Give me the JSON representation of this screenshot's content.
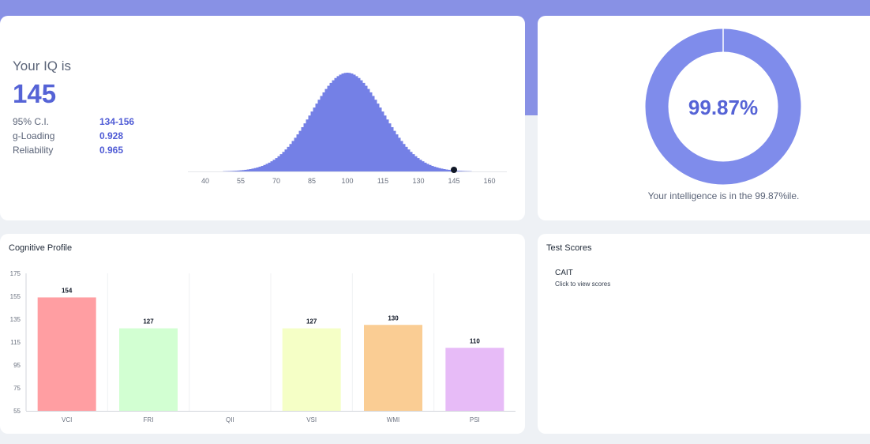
{
  "iq_card": {
    "label": "Your IQ is",
    "value": "145",
    "stats": [
      {
        "key": "95% C.I.",
        "value": "134-156"
      },
      {
        "key": "g-Loading",
        "value": "0.928"
      },
      {
        "key": "Reliability",
        "value": "0.965"
      }
    ],
    "distribution": {
      "mean": 100,
      "sd": 15,
      "marker": 145,
      "x_ticks": [
        "40",
        "55",
        "70",
        "85",
        "100",
        "115",
        "130",
        "145",
        "160"
      ],
      "bar_color": "#7480e6",
      "marker_color": "#111827"
    }
  },
  "percentile_card": {
    "value": "99.87%",
    "fraction": 0.9987,
    "caption": "Your intelligence is in the 99.87%ile.",
    "ring_color": "#7f8ceb",
    "text_color": "#5563d6"
  },
  "cognitive_profile": {
    "title": "Cognitive Profile",
    "chart_data": {
      "type": "bar",
      "categories": [
        "VCI",
        "FRI",
        "QII",
        "VSI",
        "WMI",
        "PSI"
      ],
      "values": [
        154,
        127,
        null,
        127,
        130,
        110
      ],
      "data_labels": [
        "154",
        "127",
        "",
        "127",
        "130",
        "110"
      ],
      "colors": [
        "#ff9ea2",
        "#d2ffd2",
        "#ffffff",
        "#f5ffc6",
        "#facd94",
        "#e7bbf7"
      ],
      "y_ticks": [
        "175",
        "155",
        "135",
        "115",
        "95",
        "75",
        "55"
      ],
      "ylim": [
        55,
        175
      ],
      "xlabel": "",
      "ylabel": "",
      "grid": true
    }
  },
  "test_scores": {
    "title": "Test Scores",
    "items": [
      {
        "name": "CAIT",
        "hint": "Click to view scores"
      }
    ]
  }
}
